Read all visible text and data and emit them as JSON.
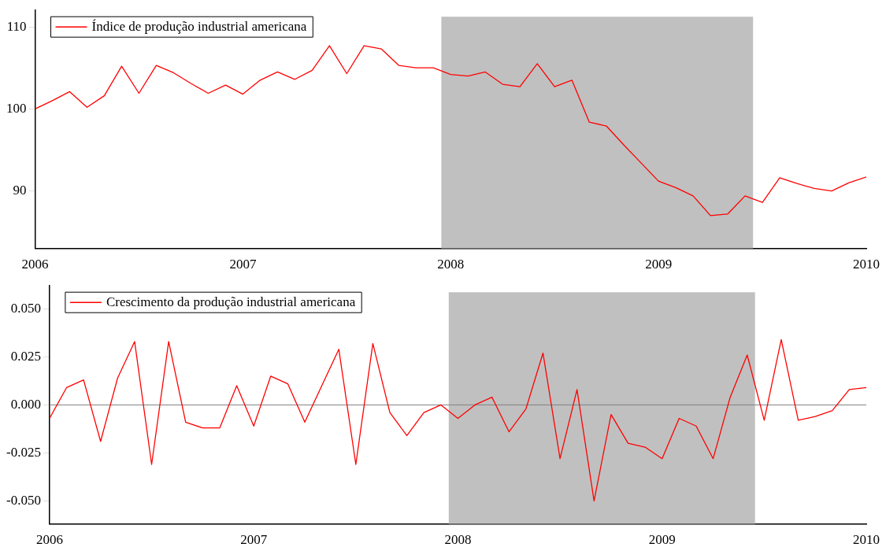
{
  "chart_data": [
    {
      "type": "line",
      "x": [
        "2006-01",
        "2006-02",
        "2006-03",
        "2006-04",
        "2006-05",
        "2006-06",
        "2006-07",
        "2006-08",
        "2006-09",
        "2006-10",
        "2006-11",
        "2006-12",
        "2007-01",
        "2007-02",
        "2007-03",
        "2007-04",
        "2007-05",
        "2007-06",
        "2007-07",
        "2007-08",
        "2007-09",
        "2007-10",
        "2007-11",
        "2007-12",
        "2008-01",
        "2008-02",
        "2008-03",
        "2008-04",
        "2008-05",
        "2008-06",
        "2008-07",
        "2008-08",
        "2008-09",
        "2008-10",
        "2008-11",
        "2008-12",
        "2009-01",
        "2009-02",
        "2009-03",
        "2009-04",
        "2009-05",
        "2009-06",
        "2009-07",
        "2009-08",
        "2009-09",
        "2009-10",
        "2009-11",
        "2009-12",
        "2010-01"
      ],
      "series": [
        {
          "name": "Índice de produção industrial americana",
          "color": "#ff0000",
          "values": [
            100.0,
            101.0,
            102.1,
            100.2,
            101.6,
            105.2,
            101.9,
            105.3,
            104.4,
            103.1,
            101.9,
            102.9,
            101.8,
            103.5,
            104.5,
            103.6,
            104.7,
            107.7,
            104.3,
            107.7,
            107.3,
            105.3,
            105.0,
            105.0,
            104.2,
            104.0,
            104.5,
            103.0,
            102.7,
            105.5,
            102.7,
            103.5,
            98.4,
            97.9,
            95.6,
            93.4,
            91.2,
            90.4,
            89.4,
            87.0,
            87.2,
            89.4,
            88.6,
            91.6,
            90.9,
            90.3,
            90.0,
            91.0,
            91.7
          ]
        }
      ],
      "xlim": [
        "2006-01",
        "2010-01"
      ],
      "xticks": [
        "2006",
        "2007",
        "2008",
        "2009",
        "2010"
      ],
      "ylim": [
        83,
        112
      ],
      "yticks": [
        90,
        100,
        110
      ],
      "bands": [
        {
          "axis": "x",
          "from": "2007-12-15",
          "to": "2009-06-15",
          "color": "#c0c0c0"
        }
      ],
      "legend": "top left",
      "grid": false,
      "marker": "none",
      "line_style": "solid"
    },
    {
      "type": "line",
      "x": [
        "2006-01",
        "2006-02",
        "2006-03",
        "2006-04",
        "2006-05",
        "2006-06",
        "2006-07",
        "2006-08",
        "2006-09",
        "2006-10",
        "2006-11",
        "2006-12",
        "2007-01",
        "2007-02",
        "2007-03",
        "2007-04",
        "2007-05",
        "2007-06",
        "2007-07",
        "2007-08",
        "2007-09",
        "2007-10",
        "2007-11",
        "2007-12",
        "2008-01",
        "2008-02",
        "2008-03",
        "2008-04",
        "2008-05",
        "2008-06",
        "2008-07",
        "2008-08",
        "2008-09",
        "2008-10",
        "2008-11",
        "2008-12",
        "2009-01",
        "2009-02",
        "2009-03",
        "2009-04",
        "2009-05",
        "2009-06",
        "2009-07",
        "2009-08",
        "2009-09",
        "2009-10",
        "2009-11",
        "2009-12",
        "2010-01"
      ],
      "series": [
        {
          "name": "Crescimento da produção industrial americana",
          "color": "#ff0000",
          "values": [
            -0.007,
            0.009,
            0.013,
            -0.019,
            0.014,
            0.033,
            -0.031,
            0.033,
            -0.009,
            -0.012,
            -0.012,
            0.01,
            -0.011,
            0.015,
            0.011,
            -0.009,
            0.01,
            0.029,
            -0.031,
            0.032,
            -0.004,
            -0.016,
            -0.004,
            0.0,
            -0.007,
            0.0,
            0.004,
            -0.014,
            -0.002,
            0.027,
            -0.028,
            0.008,
            -0.05,
            -0.005,
            -0.02,
            -0.022,
            -0.028,
            -0.007,
            -0.011,
            -0.028,
            0.004,
            0.026,
            -0.008,
            0.034,
            -0.008,
            -0.006,
            -0.003,
            0.008,
            0.009
          ]
        }
      ],
      "xlim": [
        "2006-01",
        "2010-01"
      ],
      "xticks": [
        "2006",
        "2007",
        "2008",
        "2009",
        "2010"
      ],
      "ylim": [
        -0.062,
        0.062
      ],
      "yticks": [
        {
          "value": -0.05,
          "label": "-0.050"
        },
        {
          "value": -0.025,
          "label": "-0.025"
        },
        {
          "value": 0,
          "label": "0.000"
        },
        {
          "value": 0.025,
          "label": "0.025"
        },
        {
          "value": 0.05,
          "label": "0.050"
        }
      ],
      "bands": [
        {
          "axis": "x",
          "from": "2007-12-15",
          "to": "2009-06-15",
          "color": "#c0c0c0"
        }
      ],
      "ref_lines": [
        {
          "axis": "y",
          "value": 0,
          "color": "#808080"
        }
      ],
      "legend": "top left",
      "grid": false,
      "marker": "none",
      "line_style": "solid"
    }
  ]
}
